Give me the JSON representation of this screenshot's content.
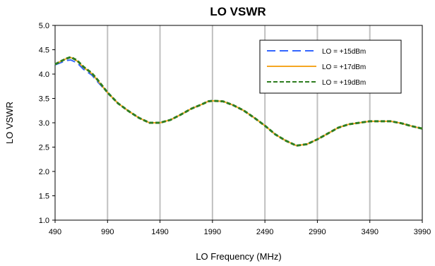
{
  "chart_data": {
    "type": "line",
    "title": "LO VSWR",
    "xlabel": "LO Frequency (MHz)",
    "ylabel": "LO VSWR",
    "xlim": [
      490,
      3990
    ],
    "ylim": [
      1.0,
      5.0
    ],
    "x_ticks": [
      490,
      990,
      1490,
      1990,
      2490,
      2990,
      3490,
      3990
    ],
    "y_ticks": [
      "1.0",
      "1.5",
      "2.0",
      "2.5",
      "3.0",
      "3.5",
      "4.0",
      "4.5",
      "5.0"
    ],
    "grid": "vertical",
    "legend_position": "top-right",
    "series": [
      {
        "name": "LO = +15dBm",
        "color": "#3366ff",
        "style": "dashed",
        "x": [
          490,
          550,
          600,
          640,
          700,
          760,
          840,
          900,
          990,
          1090,
          1190,
          1290,
          1390,
          1490,
          1590,
          1690,
          1790,
          1890,
          1950,
          1990,
          2090,
          2190,
          2290,
          2390,
          2490,
          2590,
          2690,
          2790,
          2890,
          2990,
          3090,
          3190,
          3290,
          3390,
          3490,
          3590,
          3690,
          3790,
          3890,
          3990
        ],
        "y": [
          4.19,
          4.24,
          4.28,
          4.29,
          4.23,
          4.1,
          3.98,
          3.83,
          3.62,
          3.4,
          3.24,
          3.1,
          3.0,
          3.0,
          3.06,
          3.17,
          3.29,
          3.38,
          3.44,
          3.45,
          3.44,
          3.36,
          3.25,
          3.1,
          2.94,
          2.76,
          2.63,
          2.53,
          2.56,
          2.66,
          2.78,
          2.9,
          2.97,
          3.0,
          3.03,
          3.03,
          3.03,
          2.99,
          2.93,
          2.88
        ]
      },
      {
        "name": "LO = +17dBm",
        "color": "#f5a623",
        "style": "solid",
        "x": [
          490,
          550,
          600,
          640,
          700,
          760,
          840,
          900,
          990,
          1090,
          1190,
          1290,
          1390,
          1490,
          1590,
          1690,
          1790,
          1890,
          1950,
          1990,
          2090,
          2190,
          2290,
          2390,
          2490,
          2590,
          2690,
          2790,
          2890,
          2990,
          3090,
          3190,
          3290,
          3390,
          3490,
          3590,
          3690,
          3790,
          3890,
          3990
        ],
        "y": [
          4.2,
          4.27,
          4.32,
          4.34,
          4.27,
          4.14,
          4.01,
          3.86,
          3.62,
          3.4,
          3.24,
          3.1,
          3.0,
          3.0,
          3.06,
          3.17,
          3.29,
          3.38,
          3.44,
          3.45,
          3.44,
          3.36,
          3.25,
          3.1,
          2.94,
          2.76,
          2.63,
          2.53,
          2.56,
          2.66,
          2.78,
          2.9,
          2.97,
          3.0,
          3.03,
          3.03,
          3.03,
          2.99,
          2.93,
          2.88
        ]
      },
      {
        "name": "LO = +19dBm",
        "color": "#2e7d1f",
        "style": "dashed",
        "x": [
          490,
          550,
          600,
          640,
          700,
          760,
          840,
          900,
          990,
          1090,
          1190,
          1290,
          1390,
          1490,
          1590,
          1690,
          1790,
          1890,
          1950,
          1990,
          2090,
          2190,
          2290,
          2390,
          2490,
          2590,
          2690,
          2790,
          2890,
          2990,
          3090,
          3190,
          3290,
          3390,
          3490,
          3590,
          3690,
          3790,
          3890,
          3990
        ],
        "y": [
          4.2,
          4.27,
          4.32,
          4.35,
          4.28,
          4.15,
          4.02,
          3.87,
          3.62,
          3.4,
          3.24,
          3.1,
          3.0,
          3.0,
          3.06,
          3.17,
          3.29,
          3.38,
          3.44,
          3.45,
          3.44,
          3.36,
          3.25,
          3.1,
          2.94,
          2.76,
          2.63,
          2.53,
          2.56,
          2.66,
          2.78,
          2.9,
          2.97,
          3.0,
          3.03,
          3.03,
          3.03,
          2.99,
          2.93,
          2.88
        ]
      }
    ]
  }
}
